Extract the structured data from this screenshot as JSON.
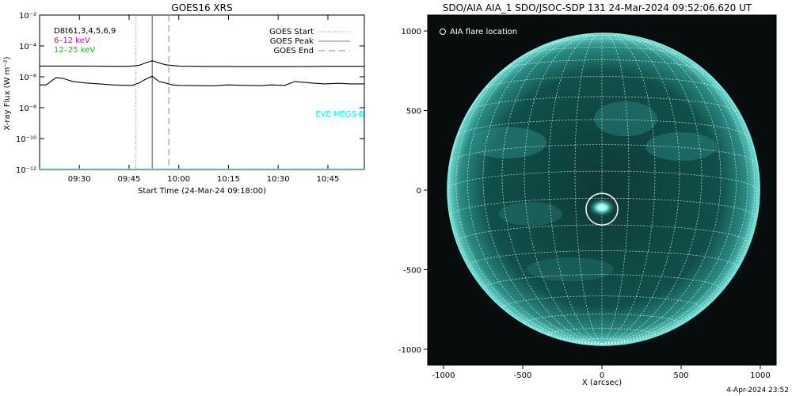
{
  "chart_data": [
    {
      "type": "line",
      "title": "GOES16 XRS",
      "xlabel": "Start Time (24-Mar-24 09:18:00)",
      "ylabel": "X-ray Flux (W m⁻²)",
      "y_scale": "log",
      "ylim": [
        1e-12,
        0.01
      ],
      "xlim": [
        "09:18",
        "10:56"
      ],
      "x_ticks": [
        "09:30",
        "09:45",
        "10:00",
        "10:15",
        "10:30",
        "10:45"
      ],
      "y_ticks": [
        {
          "value": 1e-12,
          "label": "10⁻¹²"
        },
        {
          "value": 1e-10,
          "label": "10⁻¹⁰"
        },
        {
          "value": 1e-08,
          "label": "10⁻⁸"
        },
        {
          "value": 1e-06,
          "label": "10⁻⁶"
        },
        {
          "value": 0.0001,
          "label": "10⁻⁴"
        },
        {
          "value": 0.01,
          "label": "10⁻²"
        }
      ],
      "left_legend": [
        {
          "text": "D8t61,3,4,5,6,9",
          "color": "#000000"
        },
        {
          "text": "6–12 keV",
          "color": "#cc00cc"
        },
        {
          "text": "12–25 keV",
          "color": "#00cc00"
        }
      ],
      "right_legend": [
        {
          "text": "GOES Start",
          "style": "dotted",
          "color": "#888888"
        },
        {
          "text": "GOES Peak",
          "style": "solid",
          "color": "#888888"
        },
        {
          "text": "GOES End",
          "style": "dashed",
          "color": "#888888"
        }
      ],
      "vlines": [
        {
          "name": "GOES Start",
          "time": "09:47",
          "style": "dotted"
        },
        {
          "name": "GOES Peak",
          "time": "09:52",
          "style": "solid"
        },
        {
          "name": "GOES End",
          "time": "09:57",
          "style": "dashed"
        }
      ],
      "annotation": {
        "text": "EVE MEGS-B",
        "color": "#00ffff"
      },
      "series": [
        {
          "color": "#000000",
          "x": [
            "09:18",
            "09:20",
            "09:25",
            "09:30",
            "09:35",
            "09:40",
            "09:45",
            "09:48",
            "09:50",
            "09:52",
            "09:54",
            "09:56",
            "10:00",
            "10:05",
            "10:10",
            "10:15",
            "10:20",
            "10:25",
            "10:30",
            "10:35",
            "10:40",
            "10:45",
            "10:50",
            "10:56"
          ],
          "y": [
            5e-06,
            5e-06,
            5e-06,
            5e-06,
            4.9e-06,
            4.8e-06,
            4.8e-06,
            5.5e-06,
            8e-06,
            1.1e-05,
            8e-06,
            6e-06,
            5e-06,
            4.8e-06,
            4.7e-06,
            4.7e-06,
            4.6e-06,
            4.6e-06,
            4.6e-06,
            4.6e-06,
            4.7e-06,
            4.8e-06,
            4.8e-06,
            4.8e-06
          ]
        },
        {
          "color": "#000000",
          "x": [
            "09:18",
            "09:20",
            "09:23",
            "09:25",
            "09:28",
            "09:32",
            "09:36",
            "09:40",
            "09:44",
            "09:46",
            "09:48",
            "09:50",
            "09:52",
            "09:54",
            "09:56",
            "09:58",
            "10:00",
            "10:05",
            "10:10",
            "10:15",
            "10:20",
            "10:25",
            "10:28",
            "10:32",
            "10:35",
            "10:40",
            "10:44",
            "10:48",
            "10:52",
            "10:56"
          ],
          "y": [
            3e-07,
            3e-07,
            9e-07,
            8e-07,
            5e-07,
            4e-07,
            3.5e-07,
            3e-07,
            2.8e-07,
            2.8e-07,
            4e-07,
            7e-07,
            1.1e-06,
            5e-07,
            4e-07,
            3e-07,
            2.8e-07,
            2.7e-07,
            2.6e-07,
            3e-07,
            2.8e-07,
            2.7e-07,
            3e-07,
            2.8e-07,
            5e-07,
            4e-07,
            3.5e-07,
            3.8e-07,
            3.5e-07,
            3.5e-07
          ]
        },
        {
          "color": "#00ffff",
          "x": [
            "09:18",
            "10:56"
          ],
          "y": [
            1e-12,
            1e-12
          ]
        }
      ]
    },
    {
      "type": "image",
      "title": "SDO/AIA AIA_1 SDO/JSOC-SDP 131 24-Mar-2024 09:52:06.620 UT",
      "xlabel": "X (arcsec)",
      "ylabel": "",
      "xlim": [
        -1100,
        1100
      ],
      "ylim": [
        -1100,
        1100
      ],
      "x_ticks": [
        -1000,
        -500,
        0,
        500,
        1000
      ],
      "y_ticks": [
        -1000,
        -500,
        0,
        500,
        1000
      ],
      "legend": "AIA flare location",
      "flare_location": {
        "x": 0,
        "y": -120,
        "radius_arcsec": 100
      },
      "solar_radius_arcsec": 980,
      "footer": "4-Apr-2024 23:52"
    }
  ]
}
